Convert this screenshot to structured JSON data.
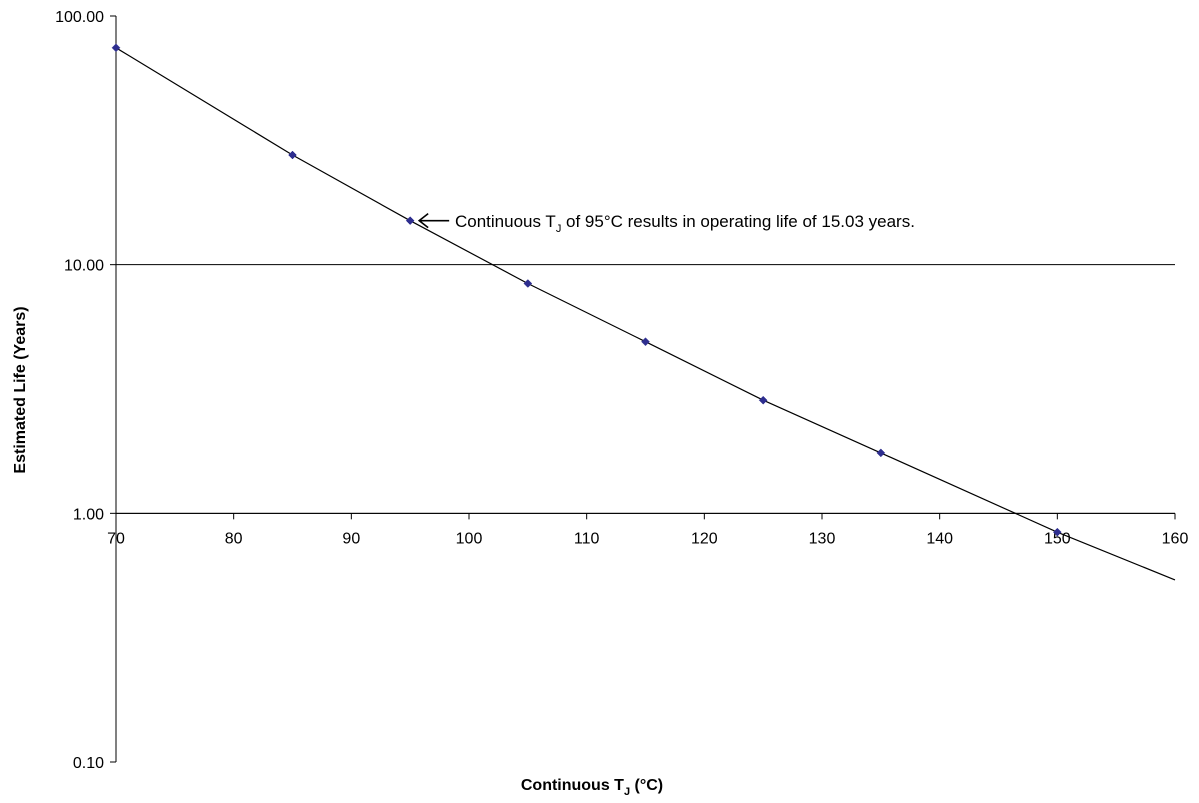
{
  "chart_data": {
    "type": "line",
    "xlabel": {
      "main": "Continuous T",
      "sub": "J",
      "suffix": " (°C)"
    },
    "ylabel": "Estimated Life (Years)",
    "y_scale": "log",
    "xlim": [
      70,
      160
    ],
    "ylim": [
      0.1,
      100
    ],
    "x_ticks": [
      70,
      80,
      90,
      100,
      110,
      120,
      130,
      140,
      150,
      160
    ],
    "x_tick_labels": [
      "70",
      "80",
      "90",
      "100",
      "110",
      "120",
      "130",
      "140",
      "150",
      "160"
    ],
    "y_ticks": [
      0.1,
      1,
      10,
      100
    ],
    "y_tick_labels": [
      "0.10",
      "1.00",
      "10.00",
      "100.00"
    ],
    "y_gridlines": [
      1,
      10
    ],
    "series": [
      {
        "color": "#000000",
        "marker_color": "#2e2e8f",
        "markers": [
          {
            "x": 70,
            "y": 74.5
          },
          {
            "x": 85,
            "y": 27.6
          },
          {
            "x": 95,
            "y": 15.03
          },
          {
            "x": 105,
            "y": 8.4
          },
          {
            "x": 115,
            "y": 4.9
          },
          {
            "x": 125,
            "y": 2.85
          },
          {
            "x": 135,
            "y": 1.75
          },
          {
            "x": 150,
            "y": 0.84
          }
        ],
        "curve_extends_to": {
          "x": 160,
          "y": 0.54
        }
      }
    ],
    "annotation": {
      "text_before": "Continuous T",
      "text_sub": "J",
      "text_after": " of 95°C results in operating life of 15.03 years.",
      "point": {
        "x": 95,
        "y": 15.03
      }
    }
  }
}
